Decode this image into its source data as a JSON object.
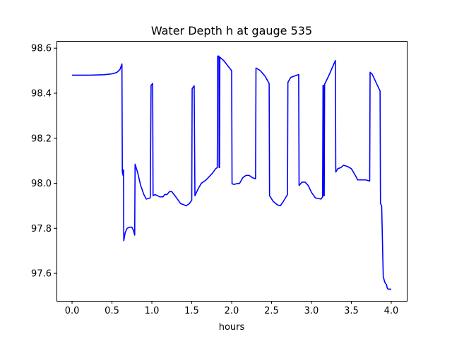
{
  "chart_data": {
    "type": "line",
    "title": "Water Depth h at gauge 535",
    "xlabel": "hours",
    "ylabel": "",
    "xlim": [
      -0.195,
      4.195
    ],
    "ylim": [
      97.478,
      98.632
    ],
    "xticks": [
      0.0,
      0.5,
      1.0,
      1.5,
      2.0,
      2.5,
      3.0,
      3.5,
      4.0
    ],
    "xtick_labels": [
      "0.0",
      "0.5",
      "1.0",
      "1.5",
      "2.0",
      "2.5",
      "3.0",
      "3.5",
      "4.0"
    ],
    "yticks": [
      97.6,
      97.8,
      98.0,
      98.2,
      98.4,
      98.6
    ],
    "ytick_labels": [
      "97.6",
      "97.8",
      "98.0",
      "98.2",
      "98.4",
      "98.6"
    ],
    "grid": false,
    "legend": "none",
    "series": [
      {
        "color": "#0000ff",
        "points": [
          [
            0.0,
            98.48
          ],
          [
            0.2,
            98.48
          ],
          [
            0.4,
            98.482
          ],
          [
            0.5,
            98.486
          ],
          [
            0.56,
            98.492
          ],
          [
            0.6,
            98.505
          ],
          [
            0.62,
            98.525
          ],
          [
            0.625,
            98.53
          ],
          [
            0.63,
            98.05
          ],
          [
            0.64,
            98.035
          ],
          [
            0.645,
            98.06
          ],
          [
            0.648,
            97.745
          ],
          [
            0.665,
            97.78
          ],
          [
            0.69,
            97.8
          ],
          [
            0.72,
            97.805
          ],
          [
            0.75,
            97.805
          ],
          [
            0.77,
            97.79
          ],
          [
            0.785,
            97.77
          ],
          [
            0.79,
            98.085
          ],
          [
            0.82,
            98.05
          ],
          [
            0.86,
            97.99
          ],
          [
            0.9,
            97.95
          ],
          [
            0.93,
            97.93
          ],
          [
            0.98,
            97.935
          ],
          [
            0.99,
            98.435
          ],
          [
            1.01,
            98.443
          ],
          [
            1.015,
            97.945
          ],
          [
            1.04,
            97.95
          ],
          [
            1.07,
            97.945
          ],
          [
            1.1,
            97.94
          ],
          [
            1.14,
            97.94
          ],
          [
            1.16,
            97.95
          ],
          [
            1.19,
            97.95
          ],
          [
            1.22,
            97.963
          ],
          [
            1.25,
            97.963
          ],
          [
            1.3,
            97.94
          ],
          [
            1.36,
            97.91
          ],
          [
            1.4,
            97.905
          ],
          [
            1.43,
            97.9
          ],
          [
            1.47,
            97.91
          ],
          [
            1.5,
            97.925
          ],
          [
            1.505,
            98.42
          ],
          [
            1.53,
            98.433
          ],
          [
            1.54,
            97.945
          ],
          [
            1.58,
            97.975
          ],
          [
            1.62,
            98.0
          ],
          [
            1.68,
            98.015
          ],
          [
            1.72,
            98.03
          ],
          [
            1.76,
            98.045
          ],
          [
            1.8,
            98.065
          ],
          [
            1.82,
            98.07
          ],
          [
            1.825,
            98.565
          ],
          [
            1.84,
            98.565
          ],
          [
            1.843,
            98.07
          ],
          [
            1.848,
            98.07
          ],
          [
            1.852,
            98.56
          ],
          [
            1.9,
            98.545
          ],
          [
            2.0,
            98.5
          ],
          [
            2.005,
            97.998
          ],
          [
            2.03,
            97.995
          ],
          [
            2.06,
            97.998
          ],
          [
            2.1,
            98.0
          ],
          [
            2.14,
            98.025
          ],
          [
            2.18,
            98.035
          ],
          [
            2.22,
            98.035
          ],
          [
            2.26,
            98.025
          ],
          [
            2.3,
            98.02
          ],
          [
            2.305,
            98.512
          ],
          [
            2.36,
            98.5
          ],
          [
            2.42,
            98.475
          ],
          [
            2.47,
            98.443
          ],
          [
            2.475,
            97.945
          ],
          [
            2.52,
            97.92
          ],
          [
            2.57,
            97.905
          ],
          [
            2.61,
            97.9
          ],
          [
            2.64,
            97.915
          ],
          [
            2.7,
            97.95
          ],
          [
            2.705,
            98.448
          ],
          [
            2.74,
            98.47
          ],
          [
            2.8,
            98.478
          ],
          [
            2.84,
            98.483
          ],
          [
            2.845,
            97.99
          ],
          [
            2.88,
            98.005
          ],
          [
            2.92,
            98.005
          ],
          [
            2.96,
            97.99
          ],
          [
            3.0,
            97.96
          ],
          [
            3.05,
            97.935
          ],
          [
            3.12,
            97.93
          ],
          [
            3.14,
            97.94
          ],
          [
            3.145,
            98.435
          ],
          [
            3.15,
            98.435
          ],
          [
            3.155,
            97.945
          ],
          [
            3.16,
            97.945
          ],
          [
            3.165,
            98.44
          ],
          [
            3.22,
            98.48
          ],
          [
            3.3,
            98.545
          ],
          [
            3.305,
            98.05
          ],
          [
            3.33,
            98.065
          ],
          [
            3.37,
            98.07
          ],
          [
            3.4,
            98.08
          ],
          [
            3.45,
            98.075
          ],
          [
            3.5,
            98.065
          ],
          [
            3.55,
            98.035
          ],
          [
            3.58,
            98.015
          ],
          [
            3.62,
            98.015
          ],
          [
            3.68,
            98.015
          ],
          [
            3.73,
            98.01
          ],
          [
            3.735,
            98.493
          ],
          [
            3.76,
            98.485
          ],
          [
            3.8,
            98.455
          ],
          [
            3.86,
            98.41
          ],
          [
            3.865,
            97.91
          ],
          [
            3.88,
            97.9
          ],
          [
            3.9,
            97.585
          ],
          [
            3.92,
            97.56
          ],
          [
            3.94,
            97.55
          ],
          [
            3.95,
            97.535
          ],
          [
            3.96,
            97.53
          ],
          [
            4.0,
            97.53
          ]
        ]
      }
    ]
  }
}
